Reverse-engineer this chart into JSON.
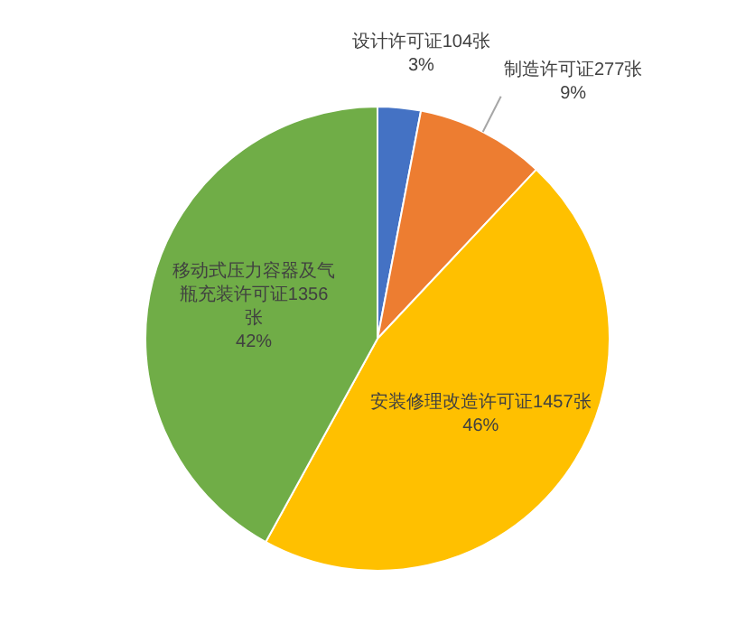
{
  "chart_data": {
    "type": "pie",
    "categories": [
      "设计许可证104张",
      "制造许可证277张",
      "安装修理改造许可证1457张",
      "移动式压力容器及气瓶充装许可证1356张"
    ],
    "values": [
      3,
      9,
      46,
      42
    ],
    "colors": [
      "#4472c4",
      "#ed7d31",
      "#ffc000",
      "#70ad47"
    ],
    "value_labels": [
      "3%",
      "9%",
      "46%",
      "42%"
    ],
    "legend": false
  }
}
